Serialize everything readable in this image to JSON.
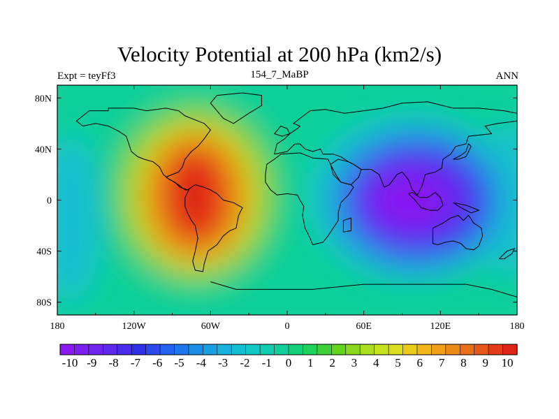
{
  "chart_data": {
    "type": "heatmap",
    "title": "Velocity Potential at 200 hPa (km2/s)",
    "left_string": "Expt = teyFf3",
    "center_string": "154_7_MaBP",
    "right_string": "ANN",
    "x_axis": {
      "range": [
        -180,
        180
      ],
      "ticks": [
        -180,
        -120,
        -60,
        0,
        60,
        120,
        180
      ],
      "tick_labels": [
        "180",
        "120W",
        "60W",
        "0",
        "60E",
        "120E",
        "180"
      ]
    },
    "y_axis": {
      "range": [
        -90,
        90
      ],
      "ticks": [
        80,
        40,
        0,
        -40,
        -80
      ],
      "tick_labels": [
        "80N",
        "40N",
        "0",
        "40S",
        "80S"
      ]
    },
    "colorbar": {
      "levels": [
        -10,
        -9,
        -8,
        -7,
        -6,
        -5,
        -4,
        -3,
        -2,
        -1,
        0,
        1,
        2,
        3,
        4,
        5,
        6,
        7,
        8,
        9,
        10
      ],
      "labels": [
        "-10",
        "-9",
        "-8",
        "-7",
        "-6",
        "-5",
        "-4",
        "-3",
        "-2",
        "-1",
        "0",
        "1",
        "2",
        "3",
        "4",
        "5",
        "6",
        "7",
        "8",
        "9",
        "10"
      ],
      "colors": [
        "#8a19f2",
        "#7d1ef2",
        "#6e24f0",
        "#5e28ee",
        "#4a2cec",
        "#3030ea",
        "#2a4af0",
        "#2462f0",
        "#1e78ec",
        "#1a8ee8",
        "#18a0e2",
        "#16b2dc",
        "#14bed2",
        "#12c8c4",
        "#10ccb0",
        "#10cf98",
        "#12d07a",
        "#20d25a",
        "#3ed038",
        "#62d41a",
        "#8ad81a",
        "#aade1e",
        "#c6e21e",
        "#dcdc1e",
        "#ecca1a",
        "#f0b61a",
        "#f0a018",
        "#ee8a18",
        "#ea7018",
        "#e65618",
        "#e43c18",
        "#e02418"
      ]
    },
    "fields": {
      "positive_center_1": {
        "lon": -75,
        "lat": 25,
        "value": 10
      },
      "positive_center_2": {
        "lon": -65,
        "lat": -18,
        "value": 10
      },
      "negative_center": {
        "lon": 100,
        "lat": 0,
        "value": -10
      }
    }
  }
}
